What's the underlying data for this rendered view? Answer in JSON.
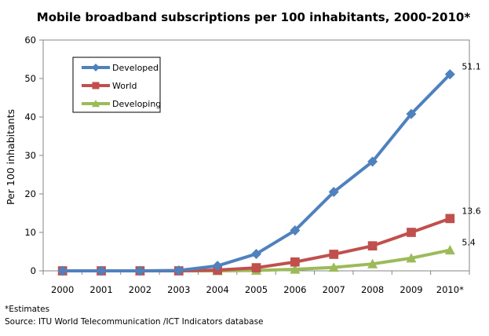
{
  "chart_data": {
    "type": "line",
    "title": "Mobile broadband subscriptions per 100 inhabitants, 2000-2010*",
    "ylabel": "Per 100 inhabitants",
    "xlabel": "",
    "categories": [
      "2000",
      "2001",
      "2002",
      "2003",
      "2004",
      "2005",
      "2006",
      "2007",
      "2008",
      "2009",
      "2010*"
    ],
    "ylim": [
      0,
      60
    ],
    "yticks": [
      "0",
      "10",
      "20",
      "30",
      "40",
      "50",
      "60"
    ],
    "grid": false,
    "legend_position": "top-left",
    "series": [
      {
        "name": "Developed",
        "color": "#4F81BD",
        "marker": "diamond",
        "values": [
          0,
          0,
          0,
          0.1,
          1.3,
          4.4,
          10.5,
          20.5,
          28.4,
          40.8,
          51.1
        ],
        "end_label": "51.1"
      },
      {
        "name": "World",
        "color": "#C0504D",
        "marker": "square",
        "values": [
          0,
          0,
          0,
          0,
          0.2,
          0.8,
          2.3,
          4.3,
          6.5,
          10.0,
          13.6
        ],
        "end_label": "13.6"
      },
      {
        "name": "Developing",
        "color": "#9BBB59",
        "marker": "triangle",
        "values": [
          0,
          0,
          0,
          0,
          0,
          0.1,
          0.4,
          0.9,
          1.8,
          3.3,
          5.4
        ],
        "end_label": "5.4"
      }
    ]
  },
  "footnotes": {
    "estimates": "*Estimates",
    "source": "Source:  ITU World Telecommunication /ICT Indicators database"
  }
}
